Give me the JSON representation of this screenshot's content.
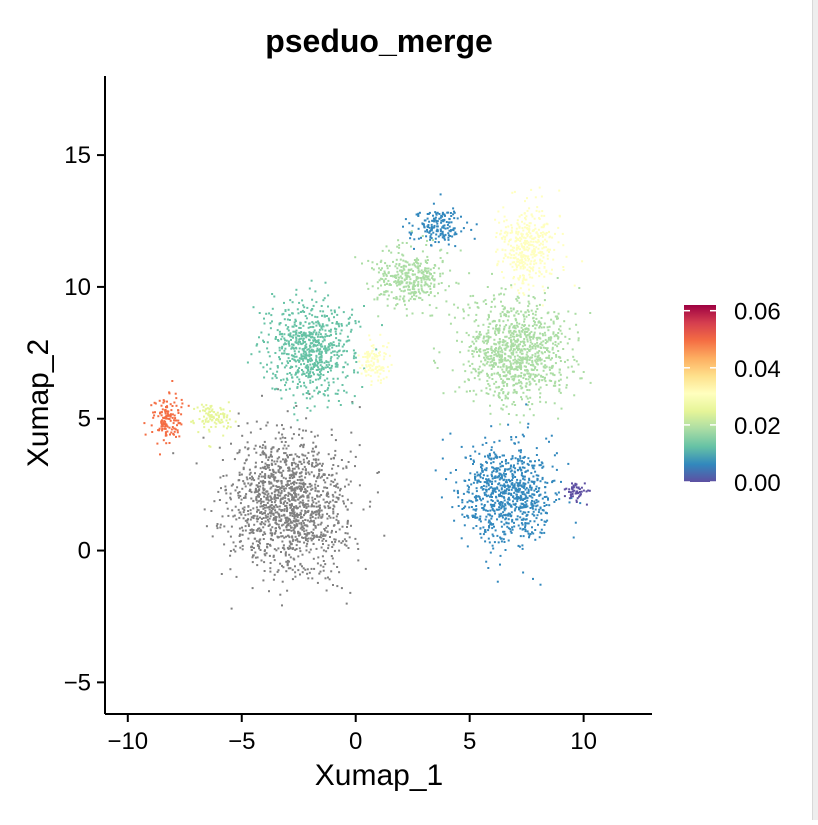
{
  "chart_data": {
    "type": "scatter",
    "title": "pseduo_merge",
    "xlabel": "Xumap_1",
    "ylabel": "Xumap_2",
    "xlim": [
      -11,
      13
    ],
    "ylim": [
      -6.2,
      18
    ],
    "xticks": [
      -10,
      -5,
      0,
      5,
      10
    ],
    "xtick_labels": [
      "−10",
      "−5",
      "0",
      "5",
      "10"
    ],
    "yticks": [
      -5,
      0,
      5,
      10,
      15
    ],
    "ytick_labels": [
      "−5",
      "0",
      "5",
      "10",
      "15"
    ],
    "grid": false,
    "colorbar": {
      "label": "",
      "ticks": [
        0.0,
        0.02,
        0.04,
        0.06
      ],
      "tick_labels": [
        "0.00",
        "0.02",
        "0.04",
        "0.06"
      ],
      "range": [
        0.0,
        0.062
      ],
      "palette": "Spectral (reversed)",
      "colors": [
        "#5E4FA2",
        "#3288BD",
        "#66C2A5",
        "#ABDDA4",
        "#E6F598",
        "#FFFFBF",
        "#FEE08B",
        "#FDAE61",
        "#F46D43",
        "#D53E4F",
        "#9E0142"
      ]
    },
    "na_color": "#808080",
    "series": [
      {
        "name": "",
        "color": "#808080",
        "cluster": "grey (no value)",
        "cx": -3,
        "cy": 1.8,
        "sx": 2.3,
        "sy": 2.4,
        "value": null
      },
      {
        "name": "",
        "color": "#F46D43",
        "cluster": "far left arc",
        "cx": -8.3,
        "cy": 5,
        "sx": 0.6,
        "sy": 0.9,
        "value": 0.045
      },
      {
        "name": "",
        "color": "#E6F598",
        "cluster": "left bridge",
        "cx": -6.3,
        "cy": 5.1,
        "sx": 0.8,
        "sy": 0.5,
        "value": 0.024
      },
      {
        "name": "",
        "color": "#66C2A5",
        "cluster": "upper left mass",
        "cx": -2,
        "cy": 7.7,
        "sx": 1.7,
        "sy": 1.6,
        "value": 0.01
      },
      {
        "name": "",
        "color": "#FFFFBF",
        "cluster": "center yellow blob",
        "cx": 0.8,
        "cy": 7.2,
        "sx": 0.6,
        "sy": 0.7,
        "value": 0.027
      },
      {
        "name": "",
        "color": "#3288BD",
        "cluster": "top blue",
        "cx": 3.5,
        "cy": 12.3,
        "sx": 1.1,
        "sy": 0.6,
        "value": 0.004
      },
      {
        "name": "",
        "color": "#ABDDA4",
        "cluster": "top center green",
        "cx": 2.3,
        "cy": 10.4,
        "sx": 1.4,
        "sy": 1,
        "value": 0.016
      },
      {
        "name": "",
        "color": "#FFFFBF",
        "cluster": "top right yellow",
        "cx": 7.5,
        "cy": 11.5,
        "sx": 1.1,
        "sy": 1.4,
        "value": 0.026
      },
      {
        "name": "",
        "color": "#ABDDA4",
        "cluster": "right main",
        "cx": 7,
        "cy": 7.6,
        "sx": 2.1,
        "sy": 1.8,
        "value": 0.018
      },
      {
        "name": "",
        "color": "#3288BD",
        "cluster": "bottom right blue",
        "cx": 6.6,
        "cy": 2.2,
        "sx": 1.9,
        "sy": 1.7,
        "value": 0.006
      },
      {
        "name": "",
        "color": "#5E4FA2",
        "cluster": "right purple tip",
        "cx": 9.6,
        "cy": 2.3,
        "sx": 0.5,
        "sy": 0.4,
        "value": 0.001
      }
    ]
  }
}
